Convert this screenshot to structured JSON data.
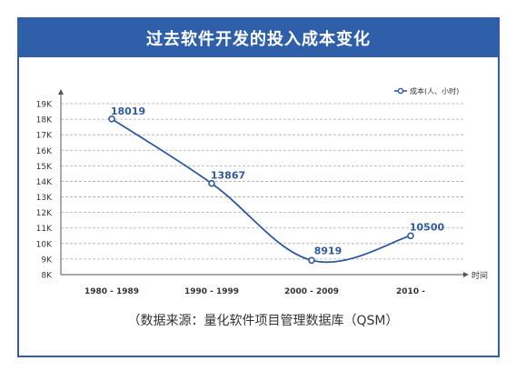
{
  "header": {
    "title": "过去软件开发的投入成本变化"
  },
  "footer": {
    "text": "（数据来源：量化软件项目管理数据库（QSM）"
  },
  "colors": {
    "accent": "#2f5fa8",
    "line": "#2e5aa0",
    "grid": "#aaaaaa",
    "axis": "#555555"
  },
  "chart_data": {
    "type": "line",
    "categories": [
      "1980 - 1989",
      "1990 - 1999",
      "2000 - 2009",
      "2010 -"
    ],
    "series": [
      {
        "name": "成本(人、小时)",
        "values": [
          18019,
          13867,
          8919,
          10500
        ]
      }
    ],
    "data_labels": [
      "18019",
      "13867",
      "8919",
      "10500"
    ],
    "y_ticks": [
      8000,
      9000,
      10000,
      11000,
      12000,
      13000,
      14000,
      15000,
      16000,
      17000,
      18000,
      19000
    ],
    "y_tick_labels": [
      "8K",
      "9K",
      "10K",
      "11K",
      "12K",
      "13K",
      "14K",
      "15K",
      "16K",
      "17K",
      "18K",
      "19K"
    ],
    "ylim": [
      8000,
      19000
    ],
    "xlabel": "时间",
    "ylabel": "",
    "grid": "dashed horizontal",
    "legend_position": "top-right",
    "smooth": true
  }
}
